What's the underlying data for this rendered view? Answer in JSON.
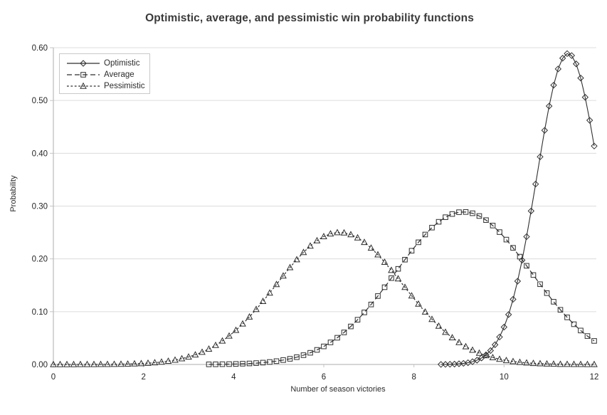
{
  "title": "Optimistic, average, and pessimistic win probability functions",
  "axes": {
    "x_label": "Number of season victories",
    "y_label": "Probability",
    "x_tick_labels": [
      "0",
      "2",
      "4",
      "6",
      "8",
      "10",
      "12"
    ],
    "x_tick_values": [
      0,
      2,
      4,
      6,
      8,
      10,
      12
    ],
    "y_tick_labels": [
      "0.00",
      "0.10",
      "0.20",
      "0.30",
      "0.40",
      "0.50",
      "0.60"
    ],
    "y_tick_values": [
      0,
      0.1,
      0.2,
      0.3,
      0.4,
      0.5,
      0.6
    ]
  },
  "legend": {
    "position": "upper-left",
    "items": [
      {
        "label": "Optimistic",
        "marker": "diamond",
        "line_style": "solid"
      },
      {
        "label": "Average",
        "marker": "square",
        "line_style": "long-dash"
      },
      {
        "label": "Pessimistic",
        "marker": "triangle",
        "line_style": "short-dash"
      }
    ]
  },
  "colors": {
    "series": "#2f2f2f",
    "grid": "#dcdcdc",
    "axis": "#adadad",
    "tick": "#c4c4c4",
    "text": "#262626",
    "title": "#3a3a3a"
  },
  "chart_data": {
    "type": "line",
    "title": "Optimistic, average, and pessimistic win probability functions",
    "xlabel": "Number of season victories",
    "ylabel": "Probability",
    "xlim": [
      0,
      12
    ],
    "ylim": [
      0,
      0.6
    ],
    "grid": true,
    "legend_position": "upper-left",
    "series": [
      {
        "name": "Optimistic",
        "marker": "diamond",
        "line_style": "solid",
        "peak": {
          "x": 11.4,
          "y": 0.589
        },
        "x": [
          8.6,
          8.7,
          8.8,
          8.9,
          9.0,
          9.1,
          9.2,
          9.3,
          9.4,
          9.5,
          9.6,
          9.7,
          9.8,
          9.9,
          10.0,
          10.1,
          10.2,
          10.3,
          10.4,
          10.5,
          10.6,
          10.7,
          10.8,
          10.9,
          11.0,
          11.1,
          11.2,
          11.3,
          11.4,
          11.5,
          11.6,
          11.7,
          11.8,
          11.9,
          12.0
        ],
        "y": [
          0.0001,
          0.0002,
          0.0004,
          0.0007,
          0.0013,
          0.0021,
          0.0033,
          0.0052,
          0.0081,
          0.0123,
          0.0182,
          0.0263,
          0.0374,
          0.052,
          0.0708,
          0.0945,
          0.1234,
          0.1577,
          0.1975,
          0.2421,
          0.2907,
          0.3417,
          0.3933,
          0.4434,
          0.4894,
          0.529,
          0.5598,
          0.5801,
          0.5888,
          0.5851,
          0.5693,
          0.5425,
          0.5061,
          0.4624,
          0.4137
        ]
      },
      {
        "name": "Average",
        "marker": "square",
        "line_style": "long-dash",
        "peak": {
          "x": 9.15,
          "y": 0.289
        },
        "x": [
          3.45,
          3.6,
          3.75,
          3.9,
          4.05,
          4.2,
          4.35,
          4.5,
          4.65,
          4.8,
          4.95,
          5.1,
          5.25,
          5.4,
          5.55,
          5.7,
          5.85,
          6.0,
          6.15,
          6.3,
          6.45,
          6.6,
          6.75,
          6.9,
          7.05,
          7.2,
          7.35,
          7.5,
          7.65,
          7.8,
          7.95,
          8.1,
          8.25,
          8.4,
          8.55,
          8.7,
          8.85,
          9.0,
          9.15,
          9.3,
          9.45,
          9.6,
          9.75,
          9.9,
          10.05,
          10.2,
          10.35,
          10.5,
          10.65,
          10.8,
          10.95,
          11.1,
          11.25,
          11.4,
          11.55,
          11.7,
          11.85,
          12.0
        ],
        "y": [
          0.0002,
          0.0003,
          0.0005,
          0.0007,
          0.001,
          0.0014,
          0.0019,
          0.0026,
          0.0035,
          0.0047,
          0.0063,
          0.0083,
          0.0107,
          0.0138,
          0.0176,
          0.0221,
          0.0276,
          0.0342,
          0.0418,
          0.0506,
          0.0607,
          0.072,
          0.0847,
          0.0986,
          0.1136,
          0.1296,
          0.1463,
          0.1636,
          0.1811,
          0.1985,
          0.2154,
          0.2314,
          0.2461,
          0.2592,
          0.2702,
          0.2789,
          0.285,
          0.2884,
          0.2888,
          0.2864,
          0.2812,
          0.2734,
          0.2631,
          0.2507,
          0.2365,
          0.2209,
          0.2042,
          0.1869,
          0.1694,
          0.152,
          0.1351,
          0.1188,
          0.1035,
          0.0892,
          0.0762,
          0.0643,
          0.0538,
          0.0446
        ]
      },
      {
        "name": "Pessimistic",
        "marker": "triangle",
        "line_style": "short-dash",
        "peak": {
          "x": 6.3,
          "y": 0.25
        },
        "x": [
          0,
          0.15,
          0.3,
          0.45,
          0.6,
          0.75,
          0.9,
          1.05,
          1.2,
          1.35,
          1.5,
          1.65,
          1.8,
          1.95,
          2.1,
          2.25,
          2.4,
          2.55,
          2.7,
          2.85,
          3.0,
          3.15,
          3.3,
          3.45,
          3.6,
          3.75,
          3.9,
          4.05,
          4.2,
          4.35,
          4.5,
          4.65,
          4.8,
          4.95,
          5.1,
          5.25,
          5.4,
          5.55,
          5.7,
          5.85,
          6.0,
          6.15,
          6.3,
          6.45,
          6.6,
          6.75,
          6.9,
          7.05,
          7.2,
          7.35,
          7.5,
          7.65,
          7.8,
          7.95,
          8.1,
          8.25,
          8.4,
          8.55,
          8.7,
          8.85,
          9.0,
          9.15,
          9.3,
          9.45,
          9.6,
          9.75,
          9.9,
          10.05,
          10.2,
          10.35,
          10.5,
          10.65,
          10.8,
          10.95,
          11.1,
          11.25,
          11.4,
          11.55,
          11.7,
          11.85,
          12.0
        ],
        "y": [
          0.0,
          0.0,
          0.0,
          0.0,
          0.0001,
          0.0001,
          0.0001,
          0.0002,
          0.0003,
          0.0004,
          0.0006,
          0.0009,
          0.0013,
          0.0018,
          0.0025,
          0.0034,
          0.0047,
          0.0063,
          0.0084,
          0.011,
          0.0143,
          0.0183,
          0.0233,
          0.0293,
          0.0363,
          0.0446,
          0.054,
          0.0648,
          0.0769,
          0.0901,
          0.1044,
          0.1196,
          0.1355,
          0.1516,
          0.1678,
          0.1836,
          0.1986,
          0.2123,
          0.2245,
          0.2346,
          0.2423,
          0.2475,
          0.2498,
          0.2494,
          0.246,
          0.24,
          0.2314,
          0.2206,
          0.2079,
          0.1937,
          0.1784,
          0.1624,
          0.1462,
          0.1301,
          0.1145,
          0.0995,
          0.0856,
          0.0727,
          0.0611,
          0.0508,
          0.0417,
          0.0338,
          0.0272,
          0.0215,
          0.0169,
          0.0131,
          0.01,
          0.0076,
          0.0057,
          0.0042,
          0.0031,
          0.0022,
          0.0016,
          0.0011,
          0.0008,
          0.0005,
          0.0004,
          0.0003,
          0.0002,
          0.0001,
          0.0001
        ]
      }
    ]
  }
}
